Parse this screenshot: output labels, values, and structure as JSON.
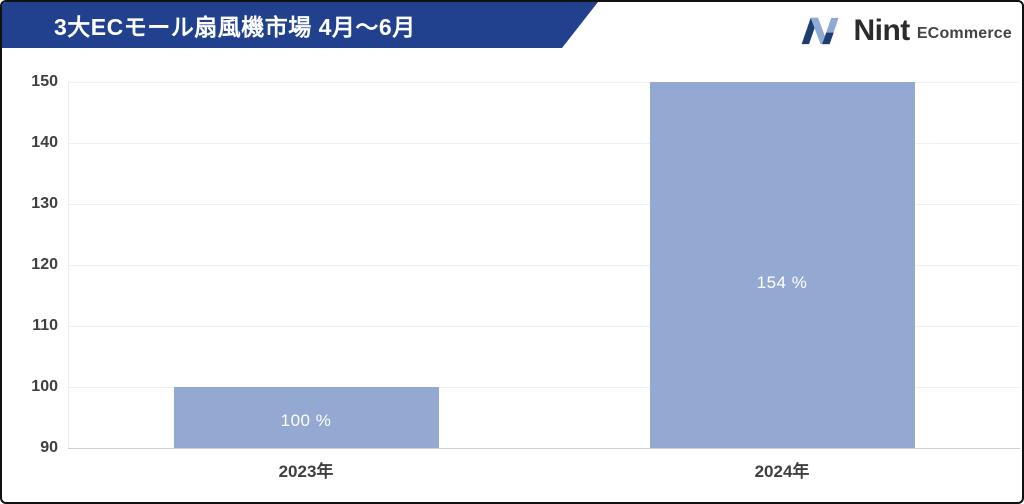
{
  "header": {
    "title": "3大ECモール扇風機市場 4月～6月"
  },
  "logo": {
    "brand": "Nint",
    "suffix": "ECommerce"
  },
  "colors": {
    "banner": "#21418f",
    "bar": "#93a9d1",
    "bar_label": "#ffffff",
    "tick_label": "#3f3f3f",
    "grid": "#f0f0f0",
    "baseline": "#cfcfcf",
    "logo_dark": "#2b2b2b",
    "logo_gray": "#444444",
    "logo_navy": "#1d3c6f",
    "logo_light_blue": "#8fa9d6"
  },
  "chart_data": {
    "type": "bar",
    "title": "3大ECモール扇風機市場 4月～6月",
    "categories": [
      "2023年",
      "2024年"
    ],
    "values": [
      100,
      154
    ],
    "data_labels": [
      "100 %",
      "154 %"
    ],
    "xlabel": "",
    "ylabel": "",
    "ylim": [
      90,
      150
    ],
    "yticks": [
      90,
      100,
      110,
      120,
      130,
      140,
      150
    ],
    "grid": "horizontal",
    "legend": "none",
    "bars_clipped_at_ymax": true
  }
}
